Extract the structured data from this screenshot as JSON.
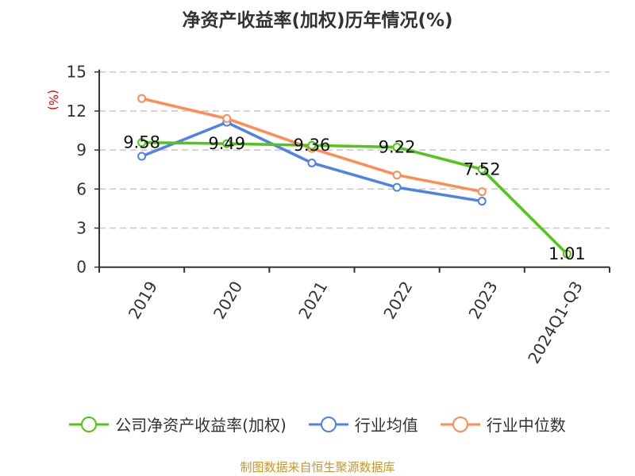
{
  "chart_data": {
    "type": "line",
    "title": "净资产收益率(加权)历年情况(%)",
    "ylabel": "(%)",
    "categories": [
      "2019",
      "2020",
      "2021",
      "2022",
      "2023",
      "2024Q1-Q3"
    ],
    "ylim": [
      0,
      15
    ],
    "yticks": [
      0,
      3,
      6,
      9,
      12,
      15
    ],
    "grid": true,
    "legend_position": "bottom",
    "series": [
      {
        "name": "公司净资产收益率(加权)",
        "color": "#52c41a",
        "values": [
          9.58,
          9.49,
          9.36,
          9.22,
          7.52,
          1.01
        ],
        "labels": [
          "9.58",
          "9.49",
          "9.36",
          "9.22",
          "7.52",
          "1.01"
        ]
      },
      {
        "name": "行业均值",
        "color": "#4f81e6",
        "values": [
          8.52,
          11.13,
          8.01,
          6.13,
          5.07,
          null
        ]
      },
      {
        "name": "行业中位数",
        "color": "#ff8c55",
        "values": [
          12.96,
          11.42,
          9.12,
          7.08,
          5.8,
          null
        ]
      }
    ]
  },
  "source": "制图数据来自恒生聚源数据库"
}
